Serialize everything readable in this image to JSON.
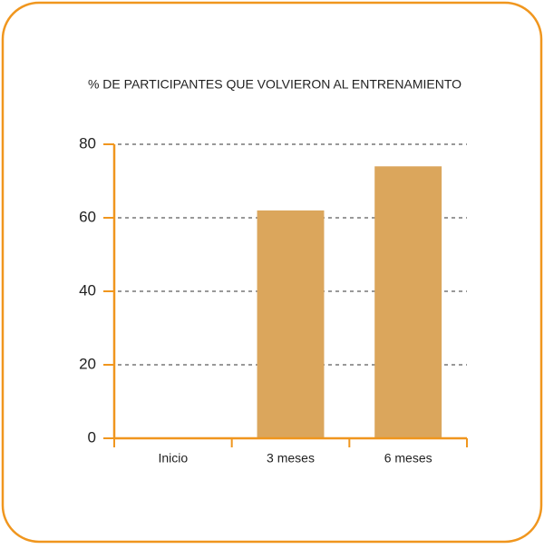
{
  "chart_data": {
    "type": "bar",
    "title": "% DE PARTICIPANTES QUE VOLVIERON AL ENTRENAMIENTO",
    "categories": [
      "Inicio",
      "3 meses",
      "6 meses"
    ],
    "values": [
      0,
      62,
      74
    ],
    "color": "#dba65c",
    "ylim": [
      0,
      80
    ],
    "yticks": [
      0,
      20,
      40,
      60,
      80
    ],
    "grid": true
  }
}
